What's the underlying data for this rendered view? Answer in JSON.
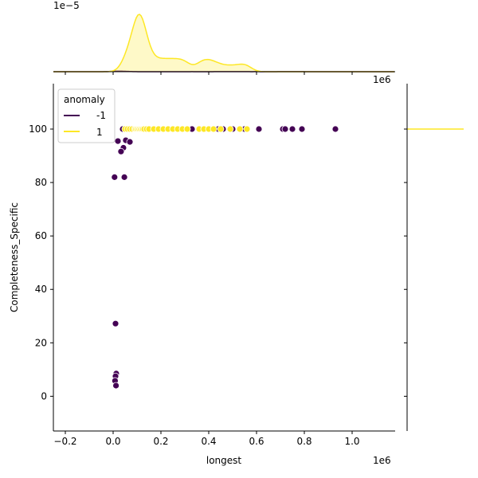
{
  "chart_data": {
    "type": "scatter",
    "subtype": "jointplot",
    "xlabel": "longest",
    "ylabel": "Completeness_Specific",
    "x_offset_label": "1e6",
    "top_marginal_offset_label": "1e−5",
    "xlim": [
      -0.25,
      1.18
    ],
    "ylim": [
      -13,
      117
    ],
    "x_ticks": [
      "−0.2",
      "0.0",
      "0.2",
      "0.4",
      "0.6",
      "0.8",
      "1.0"
    ],
    "x_tick_values": [
      -0.2,
      0,
      0.2,
      0.4,
      0.6,
      0.8,
      1.0
    ],
    "y_ticks": [
      "0",
      "20",
      "40",
      "60",
      "80",
      "100"
    ],
    "y_tick_values": [
      0,
      20,
      40,
      60,
      80,
      100
    ],
    "legend": {
      "title": "anomaly",
      "placement": "upper-left",
      "entries": [
        "-1",
        "1"
      ]
    },
    "series": [
      {
        "name": "-1",
        "color": "#440154",
        "x": [
          0.04,
          0.33,
          0.44,
          0.46,
          0.5,
          0.55,
          0.61,
          0.71,
          0.72,
          0.75,
          0.79,
          0.93,
          0.02,
          0.053,
          0.07,
          0.043,
          0.033,
          0.006,
          0.047,
          0.01,
          0.013,
          0.01,
          0.008,
          0.012
        ],
        "y": [
          100,
          100,
          100,
          100,
          100,
          100,
          100,
          100,
          100,
          100,
          100,
          100,
          95.5,
          95.8,
          95.2,
          93,
          91.6,
          82,
          82,
          27.2,
          8.5,
          7.5,
          5.8,
          4
        ]
      },
      {
        "name": "1",
        "color": "#fde725",
        "x": [
          0.05,
          0.06,
          0.07,
          0.08,
          0.09,
          0.095,
          0.1,
          0.1,
          0.105,
          0.11,
          0.11,
          0.11,
          0.115,
          0.12,
          0.12,
          0.125,
          0.13,
          0.14,
          0.15,
          0.17,
          0.19,
          0.21,
          0.23,
          0.25,
          0.27,
          0.29,
          0.31,
          0.36,
          0.38,
          0.4,
          0.42,
          0.45,
          0.49,
          0.53,
          0.56
        ],
        "y": [
          100,
          100,
          100,
          100,
          100,
          100,
          100,
          100,
          100,
          100,
          100,
          100,
          100,
          100,
          100,
          100,
          100,
          100,
          100,
          100,
          100,
          100,
          100,
          100,
          100,
          100,
          100,
          100,
          100,
          100,
          100,
          100,
          100,
          100,
          100
        ]
      }
    ]
  }
}
